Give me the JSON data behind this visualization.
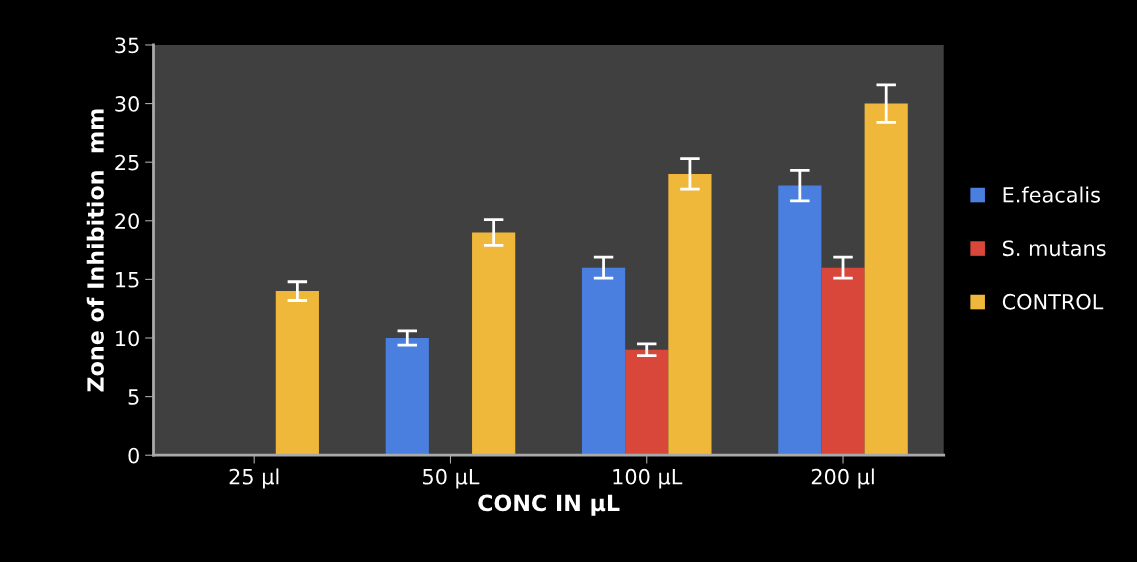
{
  "chart_data": {
    "type": "bar",
    "xlabel": "CONC IN µL",
    "ylabel": "Zone of Inhibition  mm",
    "categories": [
      "25 µl",
      "50 µL",
      "100 µL",
      "200 µl"
    ],
    "series": [
      {
        "name": "E.feacalis",
        "color": "#4a7fe0",
        "values": [
          0,
          10,
          16,
          23
        ],
        "errors": [
          null,
          0.6,
          0.9,
          1.3
        ]
      },
      {
        "name": "S. mutans",
        "color": "#d9473a",
        "values": [
          0,
          0,
          9,
          16
        ],
        "errors": [
          null,
          null,
          0.5,
          0.9
        ]
      },
      {
        "name": "CONTROL",
        "color": "#f0b83a",
        "values": [
          14,
          19,
          24,
          30
        ],
        "errors": [
          0.8,
          1.1,
          1.3,
          1.6
        ]
      }
    ],
    "ylim": [
      0,
      35
    ],
    "yticks": [
      0,
      5,
      10,
      15,
      20,
      25,
      30,
      35
    ],
    "grid": false,
    "legend": "right"
  }
}
